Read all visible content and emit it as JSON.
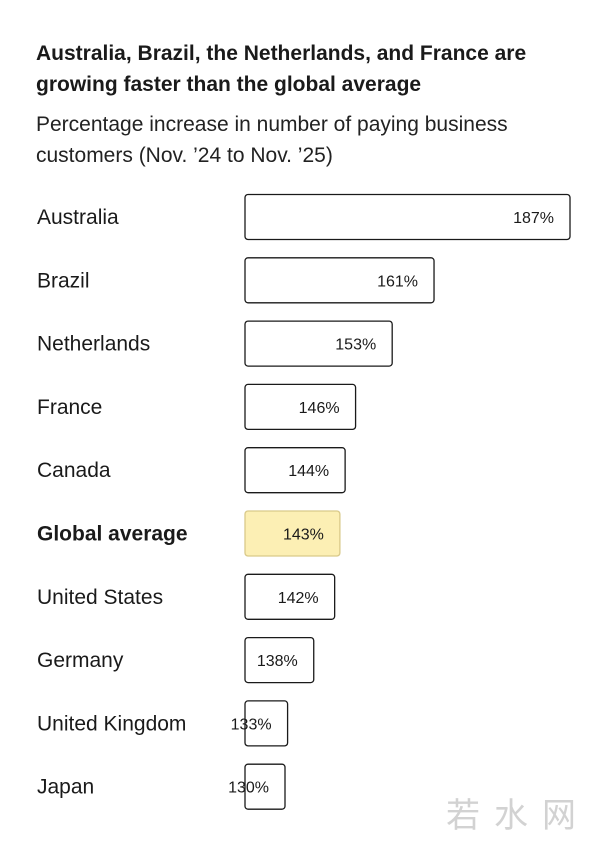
{
  "chart_data": {
    "type": "bar",
    "orientation": "horizontal",
    "title": "Australia, Brazil, the Netherlands, and France are growing faster than the global average",
    "subtitle": "Percentage increase in number of paying business customers (Nov. ’24 to Nov. ’25)",
    "categories": [
      "Australia",
      "Brazil",
      "Netherlands",
      "France",
      "Canada",
      "Global average",
      "United States",
      "Germany",
      "United Kingdom",
      "Japan"
    ],
    "values": [
      187,
      161,
      153,
      146,
      144,
      143,
      142,
      138,
      133,
      130
    ],
    "value_labels": [
      "187%",
      "161%",
      "153%",
      "146%",
      "144%",
      "143%",
      "142%",
      "138%",
      "133%",
      "130%"
    ],
    "highlight": "Global average",
    "colors": {
      "bar_fill": "#ffffff",
      "bar_stroke": "#1a1a1a",
      "highlight_fill": "#fcefb4",
      "highlight_stroke": "#d9c989"
    },
    "grid": false,
    "legend": "none"
  },
  "watermark": "若水网"
}
